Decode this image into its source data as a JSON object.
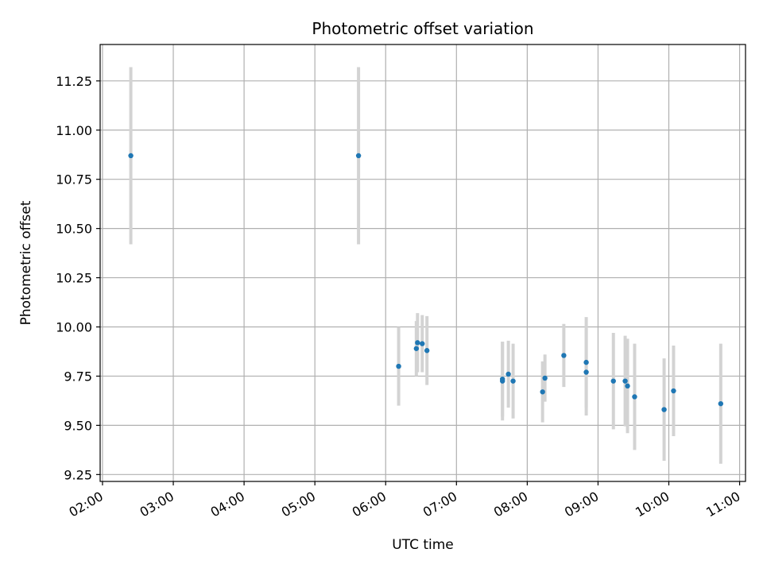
{
  "chart_data": {
    "type": "scatter",
    "title": "Photometric offset variation",
    "xlabel": "UTC time",
    "ylabel": "Photometric offset",
    "grid": true,
    "xlim": [
      "01:58",
      "11:05"
    ],
    "ylim": [
      9.215,
      11.435
    ],
    "x_ticks": [
      "02:00",
      "03:00",
      "04:00",
      "05:00",
      "06:00",
      "07:00",
      "08:00",
      "09:00",
      "10:00",
      "11:00"
    ],
    "y_ticks": [
      "9.25",
      "9.50",
      "9.75",
      "10.00",
      "10.25",
      "10.50",
      "10.75",
      "11.00",
      "11.25"
    ],
    "colors": {
      "point": "#1f77b4",
      "error_bar": "#d3d3d3",
      "grid": "#b0b0b0"
    },
    "series": [
      {
        "points": [
          {
            "x": "02:24",
            "y": 10.87,
            "err": 0.45
          },
          {
            "x": "05:37",
            "y": 10.87,
            "err": 0.45
          },
          {
            "x": "06:11",
            "y": 9.8,
            "err": 0.2
          },
          {
            "x": "06:26",
            "y": 9.89,
            "err": 0.14
          },
          {
            "x": "06:27",
            "y": 9.92,
            "err": 0.15
          },
          {
            "x": "06:31",
            "y": 9.915,
            "err": 0.145
          },
          {
            "x": "06:35",
            "y": 9.88,
            "err": 0.175
          },
          {
            "x": "07:39",
            "y": 9.735,
            "err": 0.19
          },
          {
            "x": "07:39",
            "y": 9.725,
            "err": 0.2
          },
          {
            "x": "07:44",
            "y": 9.76,
            "err": 0.17
          },
          {
            "x": "07:48",
            "y": 9.725,
            "err": 0.19
          },
          {
            "x": "08:13",
            "y": 9.67,
            "err": 0.155
          },
          {
            "x": "08:15",
            "y": 9.74,
            "err": 0.12
          },
          {
            "x": "08:31",
            "y": 9.855,
            "err": 0.16
          },
          {
            "x": "08:50",
            "y": 9.77,
            "err": 0.22
          },
          {
            "x": "08:50",
            "y": 9.82,
            "err": 0.23
          },
          {
            "x": "09:13",
            "y": 9.725,
            "err": 0.245
          },
          {
            "x": "09:23",
            "y": 9.725,
            "err": 0.23
          },
          {
            "x": "09:25",
            "y": 9.7,
            "err": 0.24
          },
          {
            "x": "09:31",
            "y": 9.645,
            "err": 0.27
          },
          {
            "x": "09:56",
            "y": 9.58,
            "err": 0.26
          },
          {
            "x": "10:04",
            "y": 9.675,
            "err": 0.23
          },
          {
            "x": "10:44",
            "y": 9.61,
            "err": 0.305
          }
        ]
      }
    ]
  }
}
